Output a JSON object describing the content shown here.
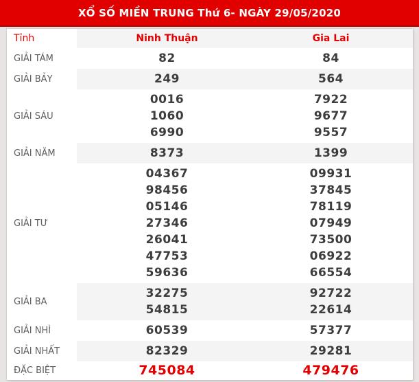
{
  "banner": {
    "title": "XỔ SỐ MIỀN TRUNG Thứ 6- NGÀY 29/05/2020"
  },
  "table": {
    "header": {
      "province_label": "Tỉnh",
      "col_ninh_thuan": "Ninh Thuận",
      "col_gia_lai": "Gia Lai"
    },
    "rows": [
      {
        "label": "GIẢI TÁM",
        "ninh_thuan": [
          "82"
        ],
        "gia_lai": [
          "84"
        ]
      },
      {
        "label": "GIẢI BẢY",
        "ninh_thuan": [
          "249"
        ],
        "gia_lai": [
          "564"
        ]
      },
      {
        "label": "GIẢI SÁU",
        "ninh_thuan": [
          "0016",
          "1060",
          "6990"
        ],
        "gia_lai": [
          "7922",
          "9677",
          "9557"
        ]
      },
      {
        "label": "GIẢI NĂM",
        "ninh_thuan": [
          "8373"
        ],
        "gia_lai": [
          "1399"
        ]
      },
      {
        "label": "GIẢI TƯ",
        "ninh_thuan": [
          "04367",
          "98456",
          "05146",
          "27346",
          "26041",
          "47753",
          "59636"
        ],
        "gia_lai": [
          "09931",
          "37845",
          "78119",
          "07949",
          "73500",
          "06922",
          "66554"
        ]
      },
      {
        "label": "GIẢI BA",
        "ninh_thuan": [
          "32275",
          "54815"
        ],
        "gia_lai": [
          "92722",
          "22614"
        ]
      },
      {
        "label": "GIẢI NHÌ",
        "ninh_thuan": [
          "60539"
        ],
        "gia_lai": [
          "57377"
        ]
      },
      {
        "label": "GIẢI NHẤT",
        "ninh_thuan": [
          "82329"
        ],
        "gia_lai": [
          "29281"
        ]
      },
      {
        "label": "ĐẶC BIỆT",
        "ninh_thuan": [
          "745084"
        ],
        "gia_lai": [
          "479476"
        ],
        "special": true
      }
    ]
  },
  "colors": {
    "banner_red": "#e10000",
    "banner_border_red": "#b60000",
    "accent_red": "#e30000",
    "shaded_row_bg": "#f4f4f4",
    "page_bg": "#e8e4e4",
    "value_text": "#3d3d3d",
    "label_text": "#5e5e5e"
  }
}
